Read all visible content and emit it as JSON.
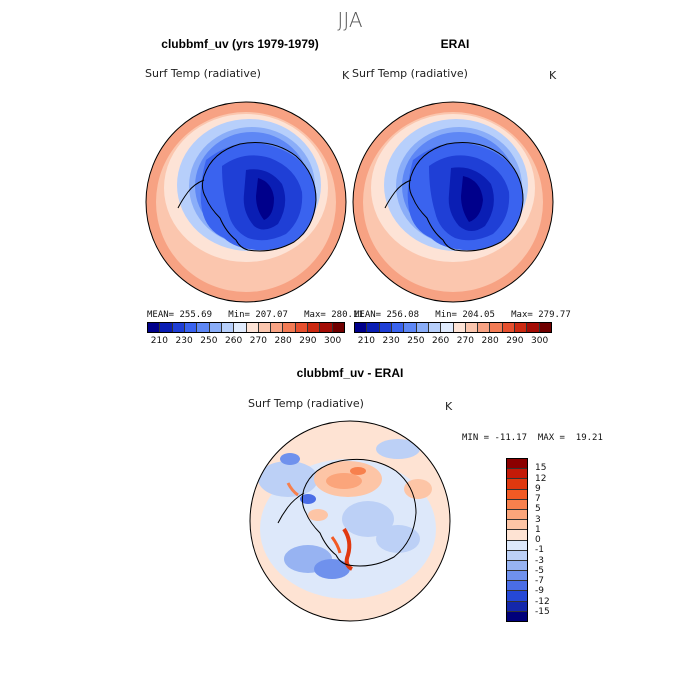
{
  "season": "JJA",
  "panels": [
    {
      "title": "clubbmf_uv (yrs 1979-1979)",
      "variable": "Surf Temp (radiative)",
      "units": "K",
      "stats": "MEAN= 255.69   Min= 207.07   Max= 280.11"
    },
    {
      "title": "ERAI",
      "variable": "Surf Temp (radiative)",
      "units": "K",
      "stats": "MEAN= 256.08   Min= 204.05   Max= 279.77"
    }
  ],
  "abs_colorbar": {
    "colors": [
      "#00008b",
      "#0a1eb4",
      "#1f3fd6",
      "#3a63ef",
      "#5e87f5",
      "#8aadf8",
      "#b7cffb",
      "#e0ebfd",
      "#fde3d6",
      "#fbc6ae",
      "#f7a283",
      "#f27b55",
      "#e6502f",
      "#cc2a12",
      "#a40d06",
      "#700000"
    ],
    "ticks": [
      "210",
      "230",
      "250",
      "260",
      "270",
      "280",
      "290",
      "300"
    ]
  },
  "diff_panel": {
    "title": "clubbmf_uv - ERAI",
    "variable": "Surf Temp (radiative)",
    "units": "K",
    "stats": "MIN = -11.17  MAX =  19.21"
  },
  "diff_colorbar": {
    "colors": [
      "#8b0000",
      "#c41a08",
      "#e0380f",
      "#f25a24",
      "#f7804d",
      "#fba57b",
      "#fdc5a6",
      "#fee3d3",
      "#dde8fa",
      "#bcd0f6",
      "#97b3f2",
      "#6f91ed",
      "#4a6de6",
      "#2548d6",
      "#1428ab",
      "#00007a"
    ],
    "labels": [
      "15",
      "12",
      "9",
      "7",
      "5",
      "3",
      "1",
      "0",
      "-1",
      "-3",
      "-5",
      "-7",
      "-9",
      "-12",
      "-15"
    ]
  }
}
